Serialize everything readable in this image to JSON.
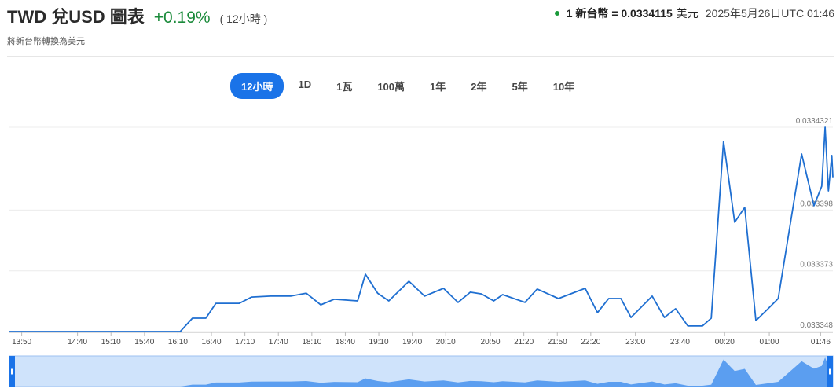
{
  "header": {
    "title": "TWD 兌USD 圖表",
    "change": "+0.19%",
    "period": "( 12小時 )",
    "subtitle": "將新台幣轉換為美元",
    "rate": "1 新台幣 = 0.0334115",
    "rate_unit": "美元",
    "timestamp": "2025年5月26日UTC 01:46"
  },
  "buttons": [
    "12小時",
    "1D",
    "1瓦",
    "100萬",
    "1年",
    "2年",
    "5年",
    "10年"
  ],
  "chart_data": {
    "type": "line",
    "color": "#1f6fd1",
    "grid": true,
    "x": [
      "13:39",
      "16:12",
      "16:23",
      "16:35",
      "16:44",
      "17:05",
      "17:16",
      "17:33",
      "17:51",
      "18:05",
      "18:18",
      "18:30",
      "18:51",
      "18:58",
      "19:09",
      "19:19",
      "19:37",
      "19:51",
      "20:08",
      "20:21",
      "20:32",
      "20:42",
      "20:53",
      "21:01",
      "21:21",
      "21:32",
      "21:51",
      "22:15",
      "22:26",
      "22:36",
      "22:47",
      "22:56",
      "23:15",
      "23:26",
      "23:36",
      "23:47",
      "00:00",
      "00:08",
      "00:19",
      "00:29",
      "00:38",
      "00:48",
      "00:59",
      "01:08",
      "01:29",
      "01:40",
      "01:47",
      "01:50",
      "01:53",
      "01:56",
      "01:57"
    ],
    "values": [
      0.033348,
      0.033348,
      0.0333535,
      0.0333535,
      0.0333596,
      0.0333596,
      0.0333622,
      0.0333626,
      0.0333626,
      0.0333638,
      0.033359,
      0.0333613,
      0.0333606,
      0.0333716,
      0.0333638,
      0.0333606,
      0.0333687,
      0.0333626,
      0.0333658,
      0.03336,
      0.0333642,
      0.0333635,
      0.0333606,
      0.0333632,
      0.03336,
      0.0333655,
      0.0333616,
      0.0333658,
      0.0333558,
      0.0333616,
      0.0333616,
      0.0333538,
      0.0333626,
      0.0333538,
      0.0333574,
      0.0333503,
      0.0333503,
      0.0333535,
      0.0334263,
      0.033393,
      0.0333991,
      0.0333525,
      0.0333574,
      0.0333616,
      0.0334211,
      0.0333998,
      0.0334078,
      0.0334321,
      0.0334059,
      0.0334205,
      0.0334115
    ],
    "xlim": [
      "13:39",
      "01:57"
    ],
    "xticks": [
      "13:50",
      "14:40",
      "15:10",
      "15:40",
      "16:10",
      "16:40",
      "17:10",
      "17:40",
      "18:10",
      "18:40",
      "19:10",
      "19:40",
      "20:10",
      "20:50",
      "21:20",
      "21:50",
      "22:20",
      "23:00",
      "23:40",
      "00:20",
      "01:00",
      "01:46"
    ],
    "ylim": [
      0.033348,
      0.0334321
    ],
    "yticks": [
      0.033348,
      0.033373,
      0.033398,
      0.0334321
    ]
  }
}
